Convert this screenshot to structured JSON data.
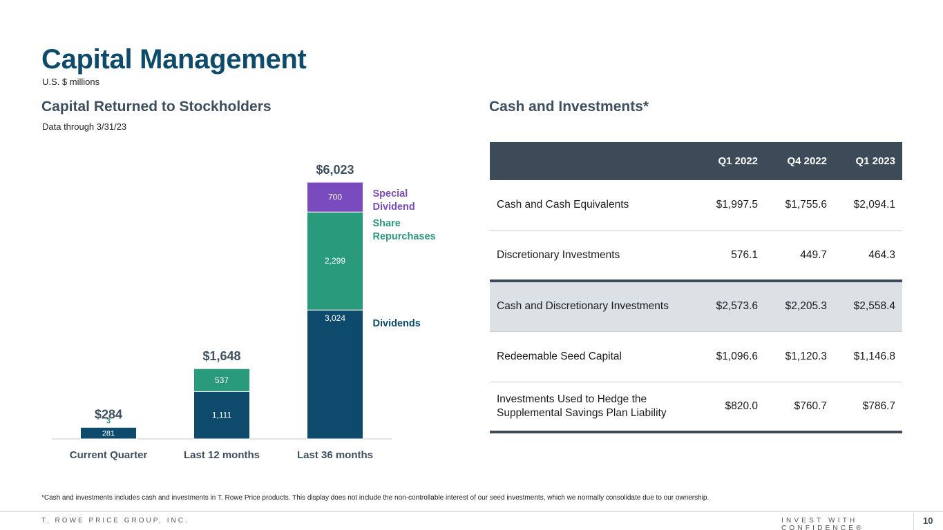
{
  "page": {
    "title": "Capital Management",
    "subtitle": "U.S. $ millions",
    "page_number": "10",
    "footer_left": "T. ROWE PRICE GROUP, INC.",
    "footer_right": "INVEST WITH CONFIDENCE®",
    "footnote": "*Cash and investments includes cash and investments in T. Rowe Price products. This display does not include the non-controllable interest of our seed investments, which we normally consolidate due to our ownership."
  },
  "colors": {
    "dividends": "#0d4a6b",
    "share_repurchases": "#2a9a7c",
    "special_dividend": "#7a4bbf",
    "title": "#0d4a6b",
    "table_header": "#3d4a57"
  },
  "left_section": {
    "heading": "Capital Returned to Stockholders",
    "note": "Data through 3/31/23"
  },
  "right_section": {
    "heading": "Cash and Investments*"
  },
  "chart_data": {
    "type": "bar",
    "stacked": true,
    "categories": [
      "Current Quarter",
      "Last 12 months",
      "Last 36 months"
    ],
    "series": [
      {
        "name": "Dividends",
        "values": [
          281,
          1111,
          3024
        ]
      },
      {
        "name": "Share Repurchases",
        "values": [
          3,
          537,
          2299
        ]
      },
      {
        "name": "Special Dividend",
        "values": [
          0,
          0,
          700
        ]
      }
    ],
    "data_labels": [
      [
        "281",
        "1,111",
        "3,024"
      ],
      [
        "3",
        "537",
        "2,299"
      ],
      [
        "",
        "",
        "700"
      ]
    ],
    "totals": [
      "$284",
      "$1,648",
      "$6,023"
    ],
    "legend_labels": [
      "Dividends",
      "Share Repurchases",
      "Special Dividend"
    ],
    "legend_lines": [
      [
        "Dividends"
      ],
      [
        "Share",
        "Repurchases"
      ],
      [
        "Special",
        "Dividend"
      ]
    ],
    "legend_placement": "right",
    "grid": false,
    "ylim": [
      0,
      6023
    ]
  },
  "table": {
    "columns": [
      "",
      "Q1 2022",
      "Q4 2022",
      "Q1 2023"
    ],
    "rows": [
      {
        "label": "Cash and Cash Equivalents",
        "values": [
          "$1,997.5",
          "$1,755.6",
          "$2,094.1"
        ]
      },
      {
        "label": "Discretionary Investments",
        "values": [
          "576.1",
          "449.7",
          "464.3"
        ]
      },
      {
        "label": "Cash and Discretionary Investments",
        "values": [
          "$2,573.6",
          "$2,205.3",
          "$2,558.4"
        ]
      },
      {
        "label": "Redeemable Seed Capital",
        "values": [
          "$1,096.6",
          "$1,120.3",
          "$1,146.8"
        ]
      },
      {
        "label_lines": [
          "Investments Used to Hedge the",
          "Supplemental Savings Plan Liability"
        ],
        "values": [
          "$820.0",
          "$760.7",
          "$786.7"
        ]
      }
    ]
  }
}
